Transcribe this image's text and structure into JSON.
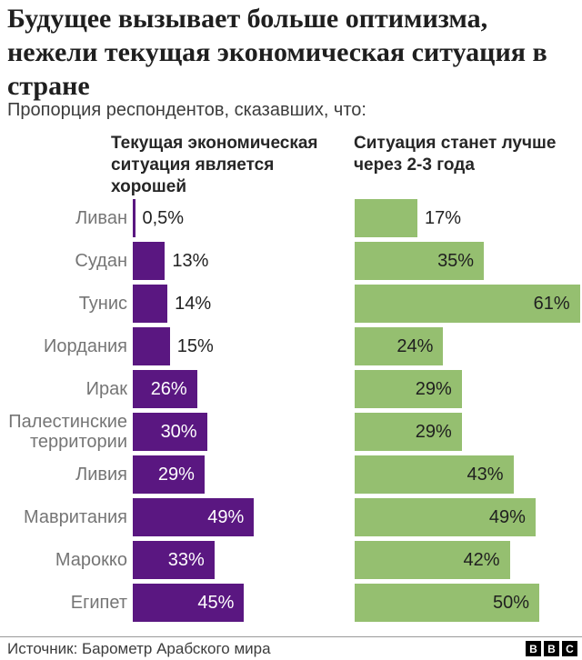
{
  "title": "Будущее вызывает больше оптимизма, нежели текущая экономическая ситуация в стране",
  "subtitle": "Пропорция респондентов, сказавших, что:",
  "column_headers": {
    "left": "Текущая экономическая ситуация является хорошей",
    "right": "Ситуация станет лучше через 2-3 года"
  },
  "chart_data": {
    "type": "bar",
    "orientation": "horizontal",
    "categories": [
      "Ливан",
      "Судан",
      "Тунис",
      "Иордания",
      "Ирак",
      "Палестинские территории",
      "Ливия",
      "Мавритания",
      "Марокко",
      "Египет"
    ],
    "series": [
      {
        "name": "Текущая экономическая ситуация является хорошей",
        "color": "#5a1781",
        "values": [
          0.5,
          13,
          14,
          15,
          26,
          30,
          29,
          49,
          33,
          45
        ],
        "labels": [
          "0,5%",
          "13%",
          "14%",
          "15%",
          "26%",
          "30%",
          "29%",
          "49%",
          "33%",
          "45%"
        ],
        "label_inside": [
          false,
          false,
          false,
          false,
          true,
          true,
          true,
          true,
          true,
          true
        ],
        "axis_max": 49
      },
      {
        "name": "Ситуация станет лучше через 2-3 года",
        "color": "#95bf70",
        "values": [
          17,
          35,
          61,
          24,
          29,
          29,
          43,
          49,
          42,
          50
        ],
        "labels": [
          "17%",
          "35%",
          "61%",
          "24%",
          "29%",
          "29%",
          "43%",
          "49%",
          "42%",
          "50%"
        ],
        "label_inside": [
          false,
          true,
          true,
          true,
          true,
          true,
          true,
          true,
          true,
          true
        ],
        "axis_max": 61
      }
    ],
    "value_suffix": "%",
    "grid": false,
    "legend_position": "column-headers"
  },
  "footer": {
    "source": "Источник: Барометр Арабского мира",
    "logo_letters": [
      "B",
      "B",
      "C"
    ]
  },
  "colors": {
    "purple": "#5a1781",
    "green": "#95bf70",
    "country_label": "#757575",
    "value_dark": "#1f1f1f",
    "value_light": "#ffffff",
    "title": "#1f1f1f",
    "divider": "#9a9a9a"
  }
}
